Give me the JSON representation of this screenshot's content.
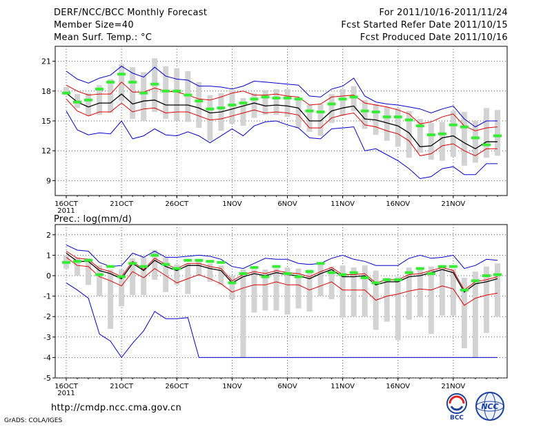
{
  "header": {
    "title": "DERF/NCC/BCC Monthly Forecast",
    "member_size": "Member Size=40",
    "variable": "Mean Surf. Temp.: °C",
    "period": "For 2011/10/16-2011/11/24",
    "started": "Fcst Started Refer Date 2011/10/15",
    "produced": "Fcst Produced Date 2011/10/16"
  },
  "footer": {
    "url": "http://cmdp.ncc.cma.gov.cn",
    "credit": "GrADS: COLA/IGES",
    "logo_bcc": "BCC",
    "logo_ncc": "NCC"
  },
  "colors": {
    "envelope": "#0000cc",
    "spread": "#dd0000",
    "mean": "#000000",
    "bar": "#d3d3d3",
    "median": "#33ee33",
    "grid": "#555555"
  },
  "chart_data": [
    {
      "type": "line",
      "title": "Mean Surf. Temp.: °C",
      "xlabel": "",
      "ylabel": "",
      "x_tick_labels": [
        "16OCT",
        "21OCT",
        "26OCT",
        "1NOV",
        "6NOV",
        "11NOV",
        "16NOV",
        "21NOV"
      ],
      "x_first_year": "2011",
      "ylim": [
        7.5,
        22.5
      ],
      "yticks": [
        9,
        12,
        15,
        18,
        21
      ],
      "grid": true,
      "days": 40,
      "series": [
        {
          "name": "max",
          "values": [
            20.0,
            19.2,
            18.8,
            19.3,
            19.6,
            20.5,
            19.8,
            19.4,
            20.4,
            19.5,
            19.2,
            19.1,
            18.5,
            18.5,
            18.4,
            18.2,
            18.5,
            19.0,
            18.9,
            18.8,
            18.7,
            18.6,
            17.5,
            17.4,
            18.2,
            18.5,
            19.3,
            17.5,
            16.9,
            16.7,
            16.6,
            16.4,
            16.2,
            15.8,
            16.2,
            16.5,
            15.2,
            14.4,
            15.0,
            15.0
          ]
        },
        {
          "name": "p-high",
          "values": [
            18.6,
            18.0,
            17.6,
            17.7,
            17.7,
            18.9,
            17.9,
            17.9,
            18.3,
            18.0,
            17.9,
            17.6,
            17.2,
            17.1,
            17.4,
            17.8,
            18.0,
            17.6,
            17.6,
            17.7,
            17.5,
            17.4,
            16.6,
            16.7,
            17.4,
            17.5,
            17.6,
            16.8,
            16.6,
            16.4,
            16.1,
            15.7,
            14.7,
            14.9,
            15.4,
            15.7,
            14.5,
            14.0,
            14.3,
            14.4
          ]
        },
        {
          "name": "mean",
          "values": [
            17.8,
            16.9,
            16.4,
            16.8,
            16.8,
            17.7,
            16.7,
            17.0,
            17.1,
            16.6,
            16.6,
            16.6,
            16.3,
            15.8,
            15.9,
            16.2,
            16.5,
            16.8,
            16.5,
            16.6,
            16.5,
            16.3,
            15.0,
            15.0,
            16.0,
            16.3,
            16.5,
            15.2,
            15.1,
            14.8,
            14.5,
            13.8,
            12.4,
            12.5,
            13.3,
            13.5,
            12.8,
            12.2,
            12.9,
            12.9
          ]
        },
        {
          "name": "p-low",
          "values": [
            17.2,
            16.0,
            15.5,
            15.9,
            15.9,
            16.8,
            15.9,
            16.2,
            16.3,
            15.8,
            15.9,
            15.9,
            15.5,
            15.1,
            15.2,
            15.5,
            15.8,
            16.1,
            15.8,
            15.9,
            15.8,
            15.6,
            14.3,
            14.3,
            15.3,
            15.6,
            15.8,
            14.6,
            14.4,
            14.0,
            13.7,
            13.0,
            11.5,
            11.7,
            12.5,
            12.7,
            12.0,
            11.5,
            12.2,
            12.2
          ]
        },
        {
          "name": "min",
          "values": [
            16.0,
            14.1,
            13.6,
            13.8,
            13.7,
            15.0,
            13.2,
            13.5,
            14.2,
            13.6,
            13.5,
            13.9,
            13.5,
            12.8,
            13.5,
            14.2,
            13.5,
            14.5,
            14.9,
            15.0,
            14.6,
            14.3,
            13.3,
            13.2,
            14.2,
            14.3,
            14.4,
            12.0,
            12.2,
            11.6,
            11.0,
            10.2,
            9.2,
            9.4,
            10.2,
            10.4,
            9.6,
            9.6,
            10.7,
            10.7
          ]
        },
        {
          "name": "median",
          "values": [
            17.8,
            16.9,
            17.1,
            18.2,
            18.9,
            19.7,
            18.9,
            17.8,
            18.7,
            18.0,
            18.0,
            17.6,
            17.0,
            16.2,
            16.3,
            16.6,
            16.8,
            17.2,
            17.4,
            17.3,
            17.3,
            17.2,
            16.0,
            15.9,
            16.7,
            17.2,
            17.4,
            16.0,
            15.9,
            15.4,
            15.4,
            15.1,
            14.5,
            13.6,
            13.7,
            14.6,
            14.4,
            13.3,
            12.6,
            13.5
          ]
        },
        {
          "name": "bar-top",
          "values": [
            18.4,
            17.7,
            17.8,
            18.6,
            19.2,
            20.7,
            20.4,
            19.9,
            21.3,
            20.5,
            20.3,
            20.0,
            18.9,
            17.6,
            17.8,
            18.1,
            17.3,
            17.8,
            18.1,
            18.2,
            18.2,
            17.2,
            16.6,
            16.7,
            17.7,
            18.2,
            18.5,
            17.1,
            16.7,
            16.4,
            16.3,
            16.0,
            15.2,
            14.8,
            14.9,
            16.0,
            15.9,
            15.0,
            16.3,
            16.1
          ]
        },
        {
          "name": "bar-bottom",
          "values": [
            17.6,
            16.3,
            15.5,
            15.6,
            15.8,
            17.0,
            15.2,
            15.0,
            15.9,
            15.2,
            15.0,
            14.9,
            14.3,
            13.0,
            14.0,
            14.7,
            14.5,
            15.3,
            15.6,
            15.6,
            15.4,
            14.3,
            13.9,
            13.5,
            14.8,
            15.5,
            16.0,
            14.2,
            13.6,
            13.0,
            12.4,
            11.3,
            11.8,
            11.1,
            11.0,
            11.4,
            10.5,
            10.8,
            11.3,
            11.5
          ]
        }
      ]
    },
    {
      "type": "line",
      "title": "Prec.: log(mm/d)",
      "xlabel": "",
      "ylabel": "",
      "x_tick_labels": [
        "16OCT",
        "21OCT",
        "26OCT",
        "1NOV",
        "6NOV",
        "11NOV",
        "16NOV",
        "21NOV"
      ],
      "x_first_year": "2011",
      "ylim": [
        -5,
        2.5
      ],
      "yticks": [
        -5,
        -4,
        -3,
        -2,
        -1,
        0,
        1,
        2
      ],
      "grid": true,
      "days": 40,
      "series": [
        {
          "name": "max",
          "values": [
            1.5,
            1.25,
            1.2,
            0.65,
            0.45,
            0.5,
            1.1,
            0.9,
            1.2,
            0.9,
            0.9,
            0.95,
            1.0,
            0.95,
            0.8,
            0.45,
            0.35,
            0.6,
            0.85,
            0.8,
            0.8,
            0.6,
            0.55,
            0.6,
            0.85,
            1.0,
            0.8,
            0.7,
            0.5,
            0.5,
            0.5,
            0.85,
            1.0,
            0.85,
            0.9,
            1.0,
            0.35,
            0.5,
            0.8,
            0.75
          ]
        },
        {
          "name": "p-high",
          "values": [
            1.2,
            0.85,
            0.8,
            0.35,
            0.2,
            -0.05,
            0.7,
            0.3,
            0.85,
            0.55,
            0.35,
            0.6,
            0.6,
            0.45,
            0.35,
            -0.25,
            0.05,
            0.2,
            0.1,
            0.25,
            0.15,
            0.1,
            -0.05,
            0.2,
            0.4,
            0.05,
            0.05,
            0.1,
            -0.35,
            -0.2,
            -0.2,
            0.05,
            0.1,
            0.25,
            0.4,
            0.25,
            -0.7,
            -0.3,
            -0.2,
            -0.05
          ]
        },
        {
          "name": "mean",
          "values": [
            1.1,
            0.7,
            0.7,
            0.25,
            0.1,
            -0.15,
            0.6,
            0.25,
            0.75,
            0.45,
            0.25,
            0.5,
            0.5,
            0.35,
            0.25,
            -0.35,
            -0.05,
            0.1,
            0.0,
            0.15,
            0.05,
            0.0,
            -0.15,
            0.1,
            0.3,
            -0.05,
            -0.05,
            0.0,
            -0.45,
            -0.3,
            -0.3,
            -0.05,
            0.0,
            0.15,
            0.3,
            0.15,
            -0.8,
            -0.4,
            -0.3,
            -0.15
          ]
        },
        {
          "name": "p-low",
          "values": [
            0.9,
            0.5,
            0.45,
            -0.05,
            -0.25,
            -0.5,
            0.2,
            -0.1,
            0.35,
            0.0,
            -0.35,
            -0.15,
            0.05,
            -0.15,
            -0.4,
            -0.8,
            -0.6,
            -0.45,
            -0.45,
            -0.3,
            -0.45,
            -0.45,
            -0.7,
            -0.5,
            -0.3,
            -0.7,
            -0.7,
            -0.7,
            -1.2,
            -1.0,
            -0.9,
            -0.75,
            -0.65,
            -0.7,
            -0.5,
            -0.65,
            -1.45,
            -1.1,
            -0.95,
            -0.85
          ]
        },
        {
          "name": "min",
          "values": [
            -0.35,
            -0.7,
            -1.1,
            -2.85,
            -3.2,
            -4.0,
            -3.3,
            -2.7,
            -1.75,
            -2.1,
            -2.1,
            -2.05,
            -4.0,
            -4.0,
            -4.0,
            -4.0,
            -4.0,
            -4.0,
            -4.0,
            -4.0,
            -4.0,
            -4.0,
            -4.0,
            -4.0,
            -4.0,
            -4.0,
            -4.0,
            -4.0,
            -4.0,
            -4.0,
            -4.0,
            -4.0,
            -4.0,
            -4.0,
            -4.0,
            -4.0,
            -4.0,
            -4.0,
            -4.0,
            -4.0
          ]
        },
        {
          "name": "median",
          "values": [
            0.65,
            0.7,
            0.75,
            0.05,
            0.45,
            -0.05,
            0.6,
            0.45,
            1.0,
            0.55,
            0.35,
            0.75,
            0.75,
            0.7,
            0.65,
            -0.35,
            0.1,
            0.4,
            -0.05,
            0.45,
            0.1,
            -0.05,
            0.2,
            0.6,
            0.15,
            0.05,
            0.15,
            -0.1,
            -0.35,
            -0.2,
            -0.2,
            0.15,
            0.35,
            0.1,
            0.45,
            0.45,
            -0.7,
            -0.25,
            0.0,
            0.05
          ]
        },
        {
          "name": "bar-top",
          "values": [
            1.0,
            0.9,
            0.85,
            0.5,
            0.3,
            0.3,
            0.85,
            0.9,
            1.25,
            0.9,
            0.55,
            0.6,
            0.75,
            0.6,
            0.5,
            0.0,
            0.3,
            0.3,
            0.3,
            0.35,
            0.4,
            0.35,
            0.3,
            0.6,
            0.45,
            0.5,
            0.4,
            0.5,
            0.25,
            -0.1,
            -0.05,
            0.4,
            0.4,
            0.45,
            0.4,
            0.35,
            -0.1,
            0.2,
            0.45,
            0.6
          ]
        },
        {
          "name": "bar-bottom",
          "values": [
            0.35,
            0.0,
            -0.45,
            -1.0,
            -2.6,
            -1.5,
            -0.95,
            -0.95,
            -0.2,
            -0.8,
            -0.45,
            -0.9,
            0.0,
            -0.3,
            -0.45,
            -1.15,
            -4.0,
            -1.8,
            -1.7,
            -1.7,
            -1.9,
            -1.6,
            -1.75,
            -1.0,
            -1.15,
            -2.05,
            -2.0,
            -2.0,
            -2.65,
            -2.25,
            -3.15,
            -2.15,
            -2.0,
            -2.85,
            -1.95,
            -1.95,
            -3.55,
            -4.0,
            -2.8,
            -2.0
          ]
        }
      ]
    }
  ]
}
